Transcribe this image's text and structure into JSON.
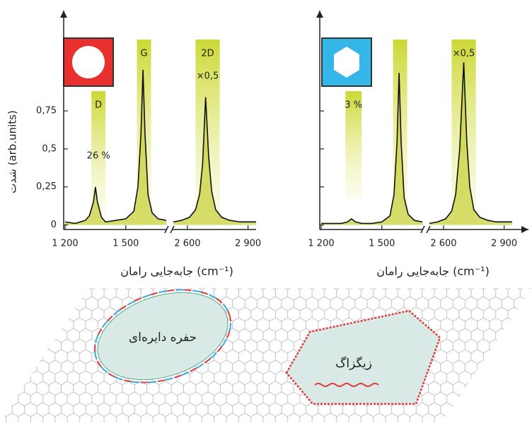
{
  "chart_data": [
    {
      "type": "line",
      "x_label": "جابه‌جایی رامان (cm⁻¹)",
      "y_label": "شدت (arb.units)",
      "segments": [
        {
          "xlim": [
            1200,
            1700
          ]
        },
        {
          "xlim": [
            2530,
            2940
          ]
        }
      ],
      "ylim": [
        -0.03,
        1.41
      ],
      "xticks": [
        {
          "value": 1200,
          "label": "1 200"
        },
        {
          "value": 1500,
          "label": "1 500"
        },
        {
          "value": 2600,
          "label": "2 600"
        },
        {
          "value": 2900,
          "label": "2 900"
        }
      ],
      "yticks": [
        0,
        {
          "value": 0.25,
          "label": "0,25"
        },
        {
          "value": 0.5,
          "label": "0,5"
        },
        {
          "value": 0.75,
          "label": "0,75"
        }
      ],
      "ytick_labels": true,
      "x": [
        1200,
        1250,
        1300,
        1320,
        1340,
        1350,
        1360,
        1380,
        1400,
        1450,
        1500,
        1540,
        1560,
        1575,
        1585,
        1595,
        1610,
        1630,
        1660,
        1700,
        2000,
        2530,
        2570,
        2610,
        2640,
        2660,
        2675,
        2690,
        2705,
        2720,
        2740,
        2770,
        2810,
        2860,
        2900,
        2940
      ],
      "series": [
        {
          "color": "#111111",
          "fill": "#c8d23c",
          "values": [
            0.02,
            0.01,
            0.03,
            0.06,
            0.15,
            0.25,
            0.15,
            0.05,
            0.02,
            0.03,
            0.04,
            0.09,
            0.25,
            0.6,
            1.02,
            0.6,
            0.2,
            0.08,
            0.04,
            0.03,
            null,
            0.02,
            0.03,
            0.05,
            0.1,
            0.2,
            0.4,
            0.84,
            0.45,
            0.22,
            0.1,
            0.05,
            0.03,
            0.02,
            0.02,
            0.02
          ]
        }
      ],
      "bands": [
        {
          "xlim": [
            1330,
            1400
          ],
          "ylim": [
            0.08,
            0.88
          ],
          "label": "D",
          "note": "26 %"
        },
        {
          "xlim": [
            1555,
            1625
          ],
          "ylim": [
            0,
            1.22
          ],
          "label": "G"
        },
        {
          "xlim": [
            2640,
            2760
          ],
          "ylim": [
            0,
            1.22
          ],
          "label": "2D",
          "note": "×0,5"
        }
      ]
    },
    {
      "type": "line",
      "x_label": "جابه‌جایی رامان (cm⁻¹)",
      "segments": [
        {
          "xlim": [
            1200,
            1700
          ]
        },
        {
          "xlim": [
            2530,
            2940
          ]
        }
      ],
      "ylim": [
        -0.03,
        1.41
      ],
      "xticks": [
        {
          "value": 1200,
          "label": "1 200"
        },
        {
          "value": 1500,
          "label": "1 500"
        },
        {
          "value": 2600,
          "label": "2 600"
        },
        {
          "value": 2900,
          "label": "2 900"
        }
      ],
      "yticks": [
        0,
        0.25,
        0.5,
        0.75
      ],
      "ytick_labels": false,
      "x": [
        1200,
        1250,
        1300,
        1330,
        1350,
        1370,
        1400,
        1450,
        1500,
        1540,
        1560,
        1575,
        1585,
        1595,
        1610,
        1630,
        1660,
        1700,
        2000,
        2530,
        2570,
        2610,
        2640,
        2660,
        2680,
        2700,
        2715,
        2730,
        2750,
        2780,
        2820,
        2860,
        2900,
        2940
      ],
      "series": [
        {
          "color": "#111111",
          "fill": "#c8d23c",
          "values": [
            0.01,
            0.01,
            0.01,
            0.02,
            0.04,
            0.02,
            0.01,
            0.01,
            0.02,
            0.06,
            0.2,
            0.55,
            1.0,
            0.55,
            0.18,
            0.07,
            0.03,
            0.02,
            null,
            0.01,
            0.02,
            0.04,
            0.09,
            0.2,
            0.5,
            1.07,
            0.55,
            0.25,
            0.1,
            0.05,
            0.03,
            0.02,
            0.02,
            0.02
          ]
        }
      ],
      "bands": [
        {
          "xlim": [
            1320,
            1400
          ],
          "ylim": [
            0.18,
            0.88
          ],
          "note": "3 %"
        },
        {
          "xlim": [
            1555,
            1625
          ],
          "ylim": [
            0,
            1.22
          ]
        },
        {
          "xlim": [
            2640,
            2760
          ],
          "ylim": [
            0,
            1.22
          ],
          "note": "×0,5"
        }
      ]
    }
  ],
  "diagram": {
    "hole_label": "حفره دایره‌ای",
    "zigzag_label": "زیگزاگ"
  }
}
